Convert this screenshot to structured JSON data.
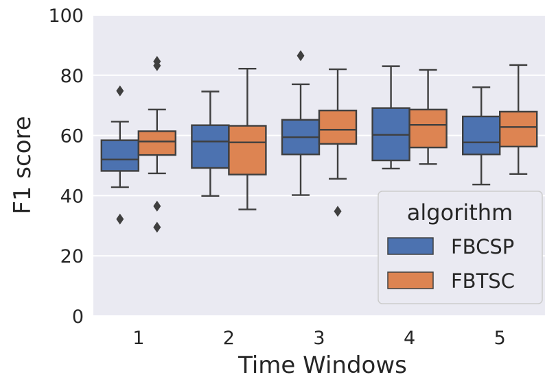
{
  "chart_data": {
    "type": "box",
    "xlabel": "Time Windows",
    "ylabel": "F1 score",
    "ylim": [
      0,
      100
    ],
    "yticks": [
      0,
      20,
      40,
      60,
      80,
      100
    ],
    "categories": [
      "1",
      "2",
      "3",
      "4",
      "5"
    ],
    "grid": true,
    "legend": {
      "title": "algorithm",
      "placement": "lower-right",
      "entries": [
        "FBCSP",
        "FBTSC"
      ]
    },
    "series": [
      {
        "name": "FBCSP",
        "color": "#4c72b0",
        "boxes": [
          {
            "category": "1",
            "whisker_low": 42.8,
            "q1": 48.2,
            "median": 52.0,
            "q3": 58.4,
            "whisker_high": 64.6,
            "outliers": [
              74.8,
              32.2
            ]
          },
          {
            "category": "2",
            "whisker_low": 39.9,
            "q1": 49.2,
            "median": 58.0,
            "q3": 63.4,
            "whisker_high": 74.6,
            "outliers": []
          },
          {
            "category": "3",
            "whisker_low": 40.2,
            "q1": 53.7,
            "median": 59.4,
            "q3": 65.2,
            "whisker_high": 77.0,
            "outliers": [
              86.5
            ]
          },
          {
            "category": "4",
            "whisker_low": 49.0,
            "q1": 51.7,
            "median": 60.2,
            "q3": 69.1,
            "whisker_high": 83.0,
            "outliers": []
          },
          {
            "category": "5",
            "whisker_low": 43.7,
            "q1": 53.7,
            "median": 57.7,
            "q3": 66.3,
            "whisker_high": 76.0,
            "outliers": []
          }
        ]
      },
      {
        "name": "FBTSC",
        "color": "#dd8452",
        "boxes": [
          {
            "category": "1",
            "whisker_low": 47.4,
            "q1": 53.5,
            "median": 58.0,
            "q3": 61.4,
            "whisker_high": 68.6,
            "outliers": [
              84.6,
              83.2,
              36.5,
              29.5
            ]
          },
          {
            "category": "2",
            "whisker_low": 35.4,
            "q1": 47.0,
            "median": 57.7,
            "q3": 63.2,
            "whisker_high": 82.2,
            "outliers": []
          },
          {
            "category": "3",
            "whisker_low": 45.6,
            "q1": 57.2,
            "median": 61.9,
            "q3": 68.3,
            "whisker_high": 82.0,
            "outliers": [
              34.8
            ]
          },
          {
            "category": "4",
            "whisker_low": 50.5,
            "q1": 56.0,
            "median": 63.5,
            "q3": 68.6,
            "whisker_high": 81.8,
            "outliers": []
          },
          {
            "category": "5",
            "whisker_low": 47.2,
            "q1": 56.3,
            "median": 62.8,
            "q3": 67.9,
            "whisker_high": 83.4,
            "outliers": []
          }
        ]
      }
    ]
  }
}
